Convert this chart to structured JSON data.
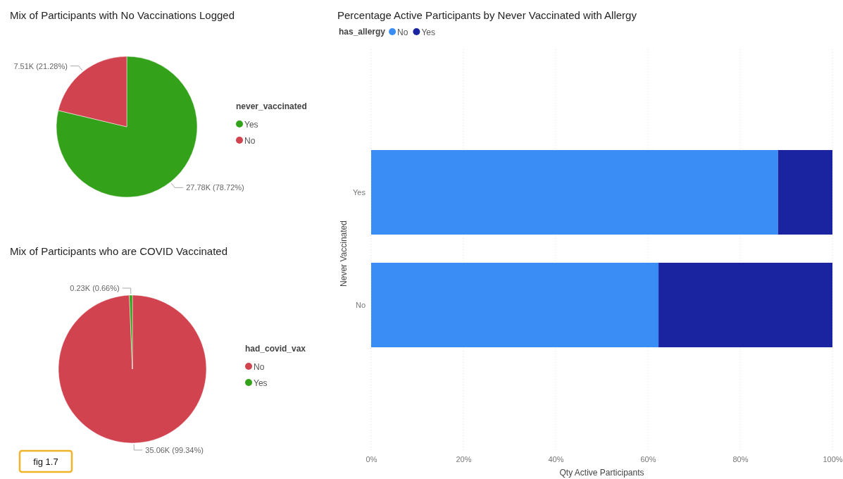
{
  "chart_data": [
    {
      "type": "pie",
      "title": "Mix of Participants with No Vaccinations Logged",
      "legend_title": "never_vaccinated",
      "legend": "right",
      "categories": [
        "Yes",
        "No"
      ],
      "values": [
        27780,
        7510
      ],
      "value_labels": [
        "27.78K (78.72%)",
        "7.51K (21.28%)"
      ],
      "colors": [
        "#33a11a",
        "#d0434f"
      ]
    },
    {
      "type": "pie",
      "title": "Mix of Participants who are COVID Vaccinated",
      "legend_title": "had_covid_vax",
      "legend": "right",
      "categories": [
        "No",
        "Yes"
      ],
      "values": [
        35060,
        230
      ],
      "value_labels": [
        "35.06K (99.34%)",
        "0.23K (0.66%)"
      ],
      "colors": [
        "#d0434f",
        "#33a11a"
      ],
      "annotations": [
        "fig 1.7"
      ]
    },
    {
      "type": "bar",
      "orientation": "horizontal",
      "stacked": true,
      "title": "Percentage Active Participants by Never Vaccinated with Allergy",
      "legend_title": "has_allergy",
      "legend": "top left",
      "categories": [
        "Yes",
        "No"
      ],
      "series": [
        {
          "name": "No",
          "color": "#3a8df5",
          "values": [
            88.2,
            62.3
          ]
        },
        {
          "name": "Yes",
          "color": "#1b24a0",
          "values": [
            11.8,
            37.7
          ]
        }
      ],
      "xlim": [
        0,
        100
      ],
      "xticks": [
        {
          "value": 0,
          "label": "0%"
        },
        {
          "value": 20,
          "label": "20%"
        },
        {
          "value": 40,
          "label": "40%"
        },
        {
          "value": 60,
          "label": "60%"
        },
        {
          "value": 80,
          "label": "80%"
        },
        {
          "value": 100,
          "label": "100%"
        }
      ],
      "xlabel": "Qty Active Participants",
      "ylabel": "Never Vaccinated",
      "grid": "x"
    }
  ]
}
